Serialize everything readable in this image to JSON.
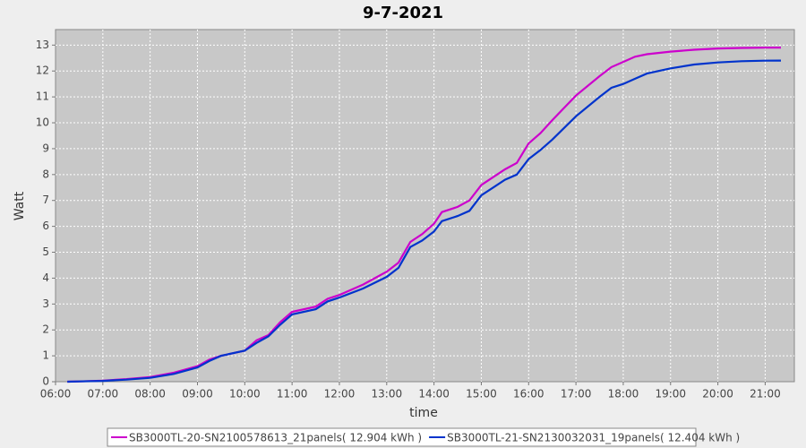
{
  "chart_data": {
    "type": "line",
    "title": "9-7-2021",
    "x_label": "time",
    "y_label": "Watt",
    "x": [
      "06:15",
      "06:30",
      "07:00",
      "07:30",
      "08:00",
      "08:30",
      "09:00",
      "09:15",
      "09:30",
      "10:00",
      "10:15",
      "10:30",
      "10:45",
      "11:00",
      "11:30",
      "11:45",
      "12:00",
      "12:30",
      "13:00",
      "13:15",
      "13:30",
      "13:45",
      "14:00",
      "14:10",
      "14:30",
      "14:45",
      "15:00",
      "15:15",
      "15:30",
      "15:45",
      "16:00",
      "16:15",
      "16:30",
      "17:00",
      "17:30",
      "17:45",
      "18:00",
      "18:15",
      "18:30",
      "19:00",
      "19:30",
      "20:00",
      "20:30",
      "21:00",
      "21:20"
    ],
    "series": [
      {
        "name": "SB3000TL-20-SN2100578613_21panels( 12.904 kWh )",
        "color": "#cc00cc",
        "values": [
          0.0,
          0.01,
          0.04,
          0.1,
          0.18,
          0.35,
          0.6,
          0.85,
          1.0,
          1.2,
          1.6,
          1.8,
          2.3,
          2.7,
          2.9,
          3.2,
          3.35,
          3.75,
          4.25,
          4.6,
          5.4,
          5.7,
          6.1,
          6.55,
          6.75,
          7.0,
          7.6,
          7.9,
          8.2,
          8.45,
          9.2,
          9.6,
          10.1,
          11.05,
          11.8,
          12.15,
          12.35,
          12.55,
          12.65,
          12.75,
          12.82,
          12.87,
          12.89,
          12.9,
          12.904
        ]
      },
      {
        "name": "SB3000TL-21-SN2130032031_19panels( 12.404 kWh )",
        "color": "#0033cc",
        "values": [
          0.0,
          0.01,
          0.03,
          0.08,
          0.15,
          0.3,
          0.55,
          0.8,
          1.0,
          1.2,
          1.5,
          1.75,
          2.2,
          2.6,
          2.8,
          3.1,
          3.25,
          3.6,
          4.05,
          4.4,
          5.2,
          5.45,
          5.8,
          6.2,
          6.4,
          6.6,
          7.2,
          7.5,
          7.8,
          8.0,
          8.6,
          8.95,
          9.35,
          10.25,
          11.0,
          11.35,
          11.5,
          11.7,
          11.9,
          12.1,
          12.25,
          12.33,
          12.38,
          12.4,
          12.404
        ]
      }
    ],
    "xlim": [
      "06:00",
      "21:37"
    ],
    "xticks": [
      "06:00",
      "07:00",
      "08:00",
      "09:00",
      "10:00",
      "11:00",
      "12:00",
      "13:00",
      "14:00",
      "15:00",
      "16:00",
      "17:00",
      "18:00",
      "19:00",
      "20:00",
      "21:00"
    ],
    "ylim": [
      0,
      13.6
    ],
    "yticks": [
      0,
      1,
      2,
      3,
      4,
      5,
      6,
      7,
      8,
      9,
      10,
      11,
      12,
      13
    ],
    "grid": true
  }
}
